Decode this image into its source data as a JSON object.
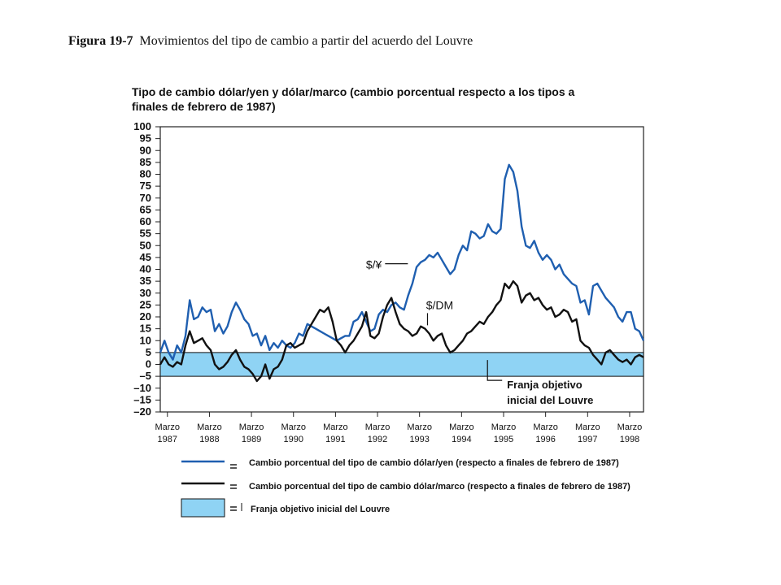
{
  "figure": {
    "number": "Figura 19-7",
    "caption": "Movimientos del tipo de cambio a partir del acuerdo del Louvre"
  },
  "chart_data": {
    "type": "line",
    "title": "Tipo de cambio dólar/yen y dólar/marco (cambio porcentual respecto a los tipos a finales de febrero de 1987)",
    "xlabel": "",
    "ylabel": "",
    "xlim": [
      1987.0,
      1998.5
    ],
    "ylim": [
      -20,
      100
    ],
    "y_ticks": [
      "100",
      "95",
      "90",
      "85",
      "80",
      "75",
      "70",
      "65",
      "60",
      "55",
      "50",
      "45",
      "40",
      "35",
      "30",
      "25",
      "20",
      "15",
      "10",
      "5",
      "0",
      "–5",
      "–10",
      "–15",
      "–20"
    ],
    "x_ticks": [
      {
        "line1": "Marzo",
        "line2": "1987",
        "x": 1987.17
      },
      {
        "line1": "Marzo",
        "line2": "1988",
        "x": 1988.17
      },
      {
        "line1": "Marzo",
        "line2": "1989",
        "x": 1989.17
      },
      {
        "line1": "Marzo",
        "line2": "1990",
        "x": 1990.17
      },
      {
        "line1": "Marzo",
        "line2": "1991",
        "x": 1991.17
      },
      {
        "line1": "Marzo",
        "line2": "1992",
        "x": 1992.17
      },
      {
        "line1": "Marzo",
        "line2": "1993",
        "x": 1993.17
      },
      {
        "line1": "Marzo",
        "line2": "1994",
        "x": 1994.17
      },
      {
        "line1": "Marzo",
        "line2": "1995",
        "x": 1995.17
      },
      {
        "line1": "Marzo",
        "line2": "1996",
        "x": 1996.17
      },
      {
        "line1": "Marzo",
        "line2": "1997",
        "x": 1997.17
      },
      {
        "line1": "Marzo",
        "line2": "1998",
        "x": 1998.17
      }
    ],
    "band": {
      "low": -5,
      "high": 5,
      "color": "#8fd3f4",
      "label": [
        "Franja objetivo",
        "inicial del Louvre"
      ]
    },
    "series": [
      {
        "name": "$/¥",
        "color": "#1f5fb0",
        "x": [
          1987.0,
          1987.1,
          1987.2,
          1987.3,
          1987.4,
          1987.5,
          1987.6,
          1987.7,
          1987.8,
          1987.9,
          1988.0,
          1988.1,
          1988.2,
          1988.3,
          1988.4,
          1988.5,
          1988.6,
          1988.7,
          1988.8,
          1988.9,
          1989.0,
          1989.1,
          1989.2,
          1989.3,
          1989.4,
          1989.5,
          1989.6,
          1989.7,
          1989.8,
          1989.9,
          1990.0,
          1990.1,
          1990.2,
          1990.3,
          1990.4,
          1990.5,
          1990.6,
          1990.7,
          1990.8,
          1990.9,
          1991.0,
          1991.1,
          1991.2,
          1991.3,
          1991.4,
          1991.5,
          1991.6,
          1991.7,
          1991.8,
          1991.9,
          1992.0,
          1992.1,
          1992.2,
          1992.3,
          1992.4,
          1992.5,
          1992.6,
          1992.7,
          1992.8,
          1992.9,
          1993.0,
          1993.1,
          1993.2,
          1993.3,
          1993.4,
          1993.5,
          1993.6,
          1993.7,
          1993.8,
          1993.9,
          1994.0,
          1994.1,
          1994.2,
          1994.3,
          1994.4,
          1994.5,
          1994.6,
          1994.7,
          1994.8,
          1994.9,
          1995.0,
          1995.1,
          1995.2,
          1995.3,
          1995.4,
          1995.5,
          1995.6,
          1995.7,
          1995.8,
          1995.9,
          1996.0,
          1996.1,
          1996.2,
          1996.3,
          1996.4,
          1996.5,
          1996.6,
          1996.7,
          1996.8,
          1996.9,
          1997.0,
          1997.1,
          1997.2,
          1997.3,
          1997.4,
          1997.5,
          1997.6,
          1997.7,
          1997.8,
          1997.9,
          1998.0,
          1998.1,
          1998.2,
          1998.3,
          1998.4,
          1998.5
        ],
        "y": [
          5,
          10,
          5,
          2,
          8,
          5,
          12,
          27,
          19,
          20,
          24,
          22,
          23,
          14,
          17,
          13,
          16,
          22,
          26,
          23,
          19,
          17,
          12,
          13,
          8,
          12,
          6,
          9,
          7,
          10,
          8,
          7,
          9,
          13,
          12,
          17,
          16,
          15,
          14,
          13,
          12,
          11,
          10,
          11,
          12,
          12,
          18,
          19,
          22,
          18,
          14,
          15,
          21,
          23,
          22,
          25,
          26,
          24,
          23,
          29,
          34,
          41,
          43,
          44,
          46,
          45,
          47,
          44,
          41,
          38,
          40,
          46,
          50,
          48,
          56,
          55,
          53,
          54,
          59,
          56,
          55,
          57,
          78,
          84,
          81,
          73,
          58,
          50,
          49,
          52,
          47,
          44,
          46,
          44,
          40,
          42,
          38,
          36,
          34,
          33,
          26,
          27,
          21,
          33,
          34,
          31,
          28,
          26,
          24,
          20,
          18,
          22,
          22,
          15,
          14,
          10
        ]
      },
      {
        "name": "$/DM",
        "color": "#111111",
        "x": [
          1987.0,
          1987.1,
          1987.2,
          1987.3,
          1987.4,
          1987.5,
          1987.6,
          1987.7,
          1987.8,
          1987.9,
          1988.0,
          1988.1,
          1988.2,
          1988.3,
          1988.4,
          1988.5,
          1988.6,
          1988.7,
          1988.8,
          1988.9,
          1989.0,
          1989.1,
          1989.2,
          1989.3,
          1989.4,
          1989.5,
          1989.6,
          1989.7,
          1989.8,
          1989.9,
          1990.0,
          1990.1,
          1990.2,
          1990.3,
          1990.4,
          1990.5,
          1990.6,
          1990.7,
          1990.8,
          1990.9,
          1991.0,
          1991.1,
          1991.2,
          1991.3,
          1991.4,
          1991.5,
          1991.6,
          1991.7,
          1991.8,
          1991.9,
          1992.0,
          1992.1,
          1992.2,
          1992.3,
          1992.4,
          1992.5,
          1992.6,
          1992.7,
          1992.8,
          1992.9,
          1993.0,
          1993.1,
          1993.2,
          1993.3,
          1993.4,
          1993.5,
          1993.6,
          1993.7,
          1993.8,
          1993.9,
          1994.0,
          1994.1,
          1994.2,
          1994.3,
          1994.4,
          1994.5,
          1994.6,
          1994.7,
          1994.8,
          1994.9,
          1995.0,
          1995.1,
          1995.2,
          1995.3,
          1995.4,
          1995.5,
          1995.6,
          1995.7,
          1995.8,
          1995.9,
          1996.0,
          1996.1,
          1996.2,
          1996.3,
          1996.4,
          1996.5,
          1996.6,
          1996.7,
          1996.8,
          1996.9,
          1997.0,
          1997.1,
          1997.2,
          1997.3,
          1997.4,
          1997.5,
          1997.6,
          1997.7,
          1997.8,
          1997.9,
          1998.0,
          1998.1,
          1998.2,
          1998.3,
          1998.4,
          1998.5
        ],
        "y": [
          0,
          3,
          0,
          -1,
          1,
          0,
          8,
          14,
          9,
          10,
          11,
          8,
          6,
          0,
          -2,
          -1,
          1,
          4,
          6,
          2,
          -1,
          -2,
          -4,
          -7,
          -5,
          0,
          -6,
          -2,
          -1,
          2,
          8,
          9,
          7,
          8,
          9,
          14,
          17,
          20,
          23,
          22,
          24,
          18,
          10,
          8,
          5,
          8,
          10,
          13,
          16,
          22,
          12,
          11,
          13,
          20,
          25,
          28,
          22,
          17,
          15,
          14,
          12,
          13,
          16,
          15,
          13,
          10,
          12,
          13,
          8,
          5,
          6,
          8,
          10,
          13,
          14,
          16,
          18,
          17,
          20,
          22,
          25,
          27,
          34,
          32,
          35,
          33,
          26,
          29,
          30,
          27,
          28,
          25,
          23,
          24,
          20,
          21,
          23,
          22,
          18,
          19,
          10,
          8,
          7,
          4,
          2,
          0,
          5,
          6,
          4,
          2,
          1,
          2,
          0,
          3,
          4,
          3
        ]
      }
    ],
    "annotations": [
      {
        "text": "$/¥",
        "x": 1992.35,
        "y": 42
      },
      {
        "text": "$/DM",
        "x": 1993.65,
        "y": 25
      }
    ],
    "legend": {
      "placement": "bottom",
      "items": [
        {
          "text": "Cambio porcentual  del tipo de cambio dólar/yen (respecto  a finales de febrero  de 1987)"
        },
        {
          "text": "Cambio porcentual  del tipo de cambio dólar/marco (respecto  a finales de febrero  de 1987)"
        },
        {
          "text": "Franja objetivo inicial del Louvre"
        }
      ]
    }
  }
}
